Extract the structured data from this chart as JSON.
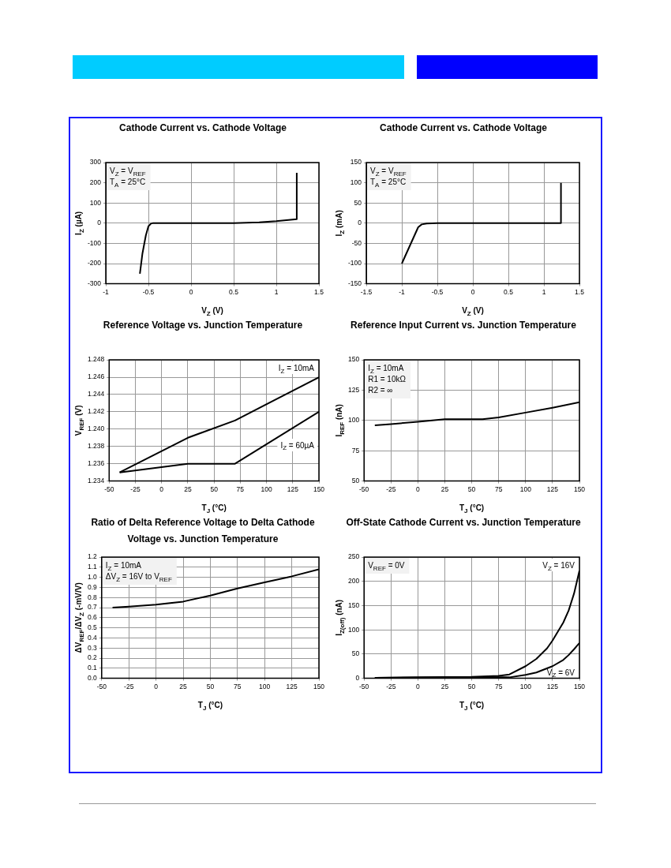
{
  "chart_data": [
    {
      "type": "line",
      "title": "Cathode Current vs. Cathode Voltage",
      "xlabel": "V$_{Z}$ (V)",
      "ylabel": "I$_{Z}$ (µA)",
      "annotations": [
        "V$_{Z}$ = V$_{REF}$",
        "T$_{A}$ = 25°C"
      ],
      "xlim": [
        -1,
        1.5
      ],
      "xticks": [
        -1,
        -0.5,
        0,
        0.5,
        1,
        1.5
      ],
      "ylim": [
        -300,
        300
      ],
      "yticks": [
        -300,
        -200,
        -100,
        0,
        100,
        200,
        300
      ],
      "grid": true,
      "legend": false,
      "series": [
        {
          "color": "#000000",
          "x": [
            -0.6,
            -0.57,
            -0.53,
            -0.5,
            -0.47,
            -0.45,
            0,
            0.5,
            0.8,
            1.0,
            1.24,
            1.24
          ],
          "values": [
            -250,
            -150,
            -60,
            -15,
            -2,
            0,
            0,
            0,
            4,
            10,
            20,
            250
          ]
        }
      ]
    },
    {
      "type": "line",
      "title": "Cathode Current vs. Cathode Voltage",
      "xlabel": "V$_{Z}$ (V)",
      "ylabel": "I$_{Z}$ (mA)",
      "annotations": [
        "V$_{Z}$ = V$_{REF}$",
        "T$_{A}$ = 25°C"
      ],
      "xlim": [
        -1.5,
        1.5
      ],
      "xticks": [
        -1.5,
        -1,
        -0.5,
        0,
        0.5,
        1,
        1.5
      ],
      "ylim": [
        -150,
        150
      ],
      "yticks": [
        -150,
        -100,
        -50,
        0,
        50,
        100,
        150
      ],
      "grid": true,
      "legend": false,
      "series": [
        {
          "color": "#000000",
          "x": [
            -1,
            -0.77,
            -0.72,
            -0.65,
            -0.5,
            1.24,
            1.24
          ],
          "values": [
            -100,
            -10,
            -3,
            -1,
            0,
            0,
            100
          ]
        }
      ]
    },
    {
      "type": "line",
      "title": "Reference Voltage vs. Junction Temperature",
      "xlabel": "T$_{J}$ (°C)",
      "ylabel": "V$_{REF}$ (V)",
      "xlim": [
        -50,
        150
      ],
      "xticks": [
        -50,
        -25,
        0,
        25,
        50,
        75,
        100,
        125,
        150
      ],
      "ylim": [
        1.234,
        1.248
      ],
      "yticks": [
        1.234,
        1.236,
        1.238,
        {
          "value": 1.24,
          "label": "1.240"
        },
        1.242,
        1.244,
        1.246,
        1.248
      ],
      "grid": true,
      "legend": false,
      "series": [
        {
          "name": "I$_{Z}$ = 10mA",
          "color": "#000000",
          "x": [
            -40,
            25,
            70,
            150
          ],
          "values": [
            1.235,
            1.239,
            1.241,
            1.246
          ]
        },
        {
          "name": "I$_{Z}$ = 60µA",
          "color": "#000000",
          "x": [
            -40,
            25,
            70,
            150
          ],
          "values": [
            1.235,
            1.236,
            1.236,
            1.242
          ]
        }
      ]
    },
    {
      "type": "line",
      "title": "Reference Input Current vs. Junction Temperature",
      "xlabel": "T$_{J}$ (°C)",
      "ylabel": "I$_{REF}$ (nA)",
      "annotations": [
        "I$_{Z}$ = 10mA",
        "R1 = 10kΩ",
        "R2 = ∞"
      ],
      "xlim": [
        -50,
        150
      ],
      "xticks": [
        -50,
        -25,
        0,
        25,
        50,
        75,
        100,
        125,
        150
      ],
      "ylim": [
        50,
        150
      ],
      "yticks": [
        50,
        75,
        100,
        125,
        150
      ],
      "grid": true,
      "legend": false,
      "series": [
        {
          "color": "#000000",
          "x": [
            -40,
            -25,
            0,
            25,
            60,
            75,
            100,
            125,
            150
          ],
          "values": [
            96,
            97,
            99,
            101,
            101,
            102.5,
            106.5,
            110.5,
            115
          ]
        }
      ]
    },
    {
      "type": "line",
      "title": "Ratio of Delta Reference Voltage to Delta Cathode Voltage vs. Junction Temperature",
      "xlabel": "T$_{J}$ (°C)",
      "ylabel": "ΔV$_{REF}$/ΔV$_{Z}$ (-mV/V)",
      "annotations": [
        "I$_{Z}$ = 10mA",
        "ΔV$_{Z}$ = 16V to V$_{REF}$"
      ],
      "xlim": [
        -50,
        150
      ],
      "xticks": [
        -50,
        -25,
        0,
        25,
        50,
        75,
        100,
        125,
        150
      ],
      "ylim": [
        0,
        1.2
      ],
      "yticks": [
        {
          "value": 0,
          "label": "0.0"
        },
        0.1,
        0.2,
        0.3,
        0.4,
        0.5,
        0.6,
        0.7,
        0.8,
        0.9,
        {
          "value": 1,
          "label": "1.0"
        },
        1.1,
        1.2
      ],
      "grid": true,
      "legend": false,
      "series": [
        {
          "color": "#000000",
          "x": [
            -40,
            -25,
            0,
            25,
            50,
            75,
            100,
            125,
            150
          ],
          "values": [
            0.7,
            0.71,
            0.73,
            0.76,
            0.82,
            0.89,
            0.95,
            1.01,
            1.08
          ]
        }
      ]
    },
    {
      "type": "line",
      "title": "Off-State Cathode Current vs. Junction Temperature",
      "xlabel": "T$_{J}$ (°C)",
      "ylabel": "I$_{Z(off)}$ (nA)",
      "annotations": [
        "V$_{REF}$ = 0V"
      ],
      "xlim": [
        -50,
        150
      ],
      "xticks": [
        -50,
        -25,
        0,
        25,
        50,
        75,
        100,
        125,
        150
      ],
      "ylim": [
        0,
        250
      ],
      "yticks": [
        0,
        50,
        100,
        150,
        200,
        250
      ],
      "grid": true,
      "legend": false,
      "series": [
        {
          "name": "V$_{Z}$ = 16V",
          "color": "#000000",
          "x": [
            -40,
            0,
            50,
            75,
            85,
            100,
            110,
            120,
            125,
            135,
            140,
            145,
            150
          ],
          "values": [
            1,
            2,
            3,
            5,
            8,
            25,
            40,
            62,
            78,
            115,
            140,
            175,
            222
          ]
        },
        {
          "name": "V$_{Z}$ = 6V",
          "color": "#000000",
          "x": [
            -40,
            50,
            85,
            100,
            110,
            125,
            135,
            140,
            145,
            150
          ],
          "values": [
            1,
            2,
            2,
            7,
            12,
            25,
            38,
            48,
            60,
            73
          ]
        }
      ]
    }
  ]
}
